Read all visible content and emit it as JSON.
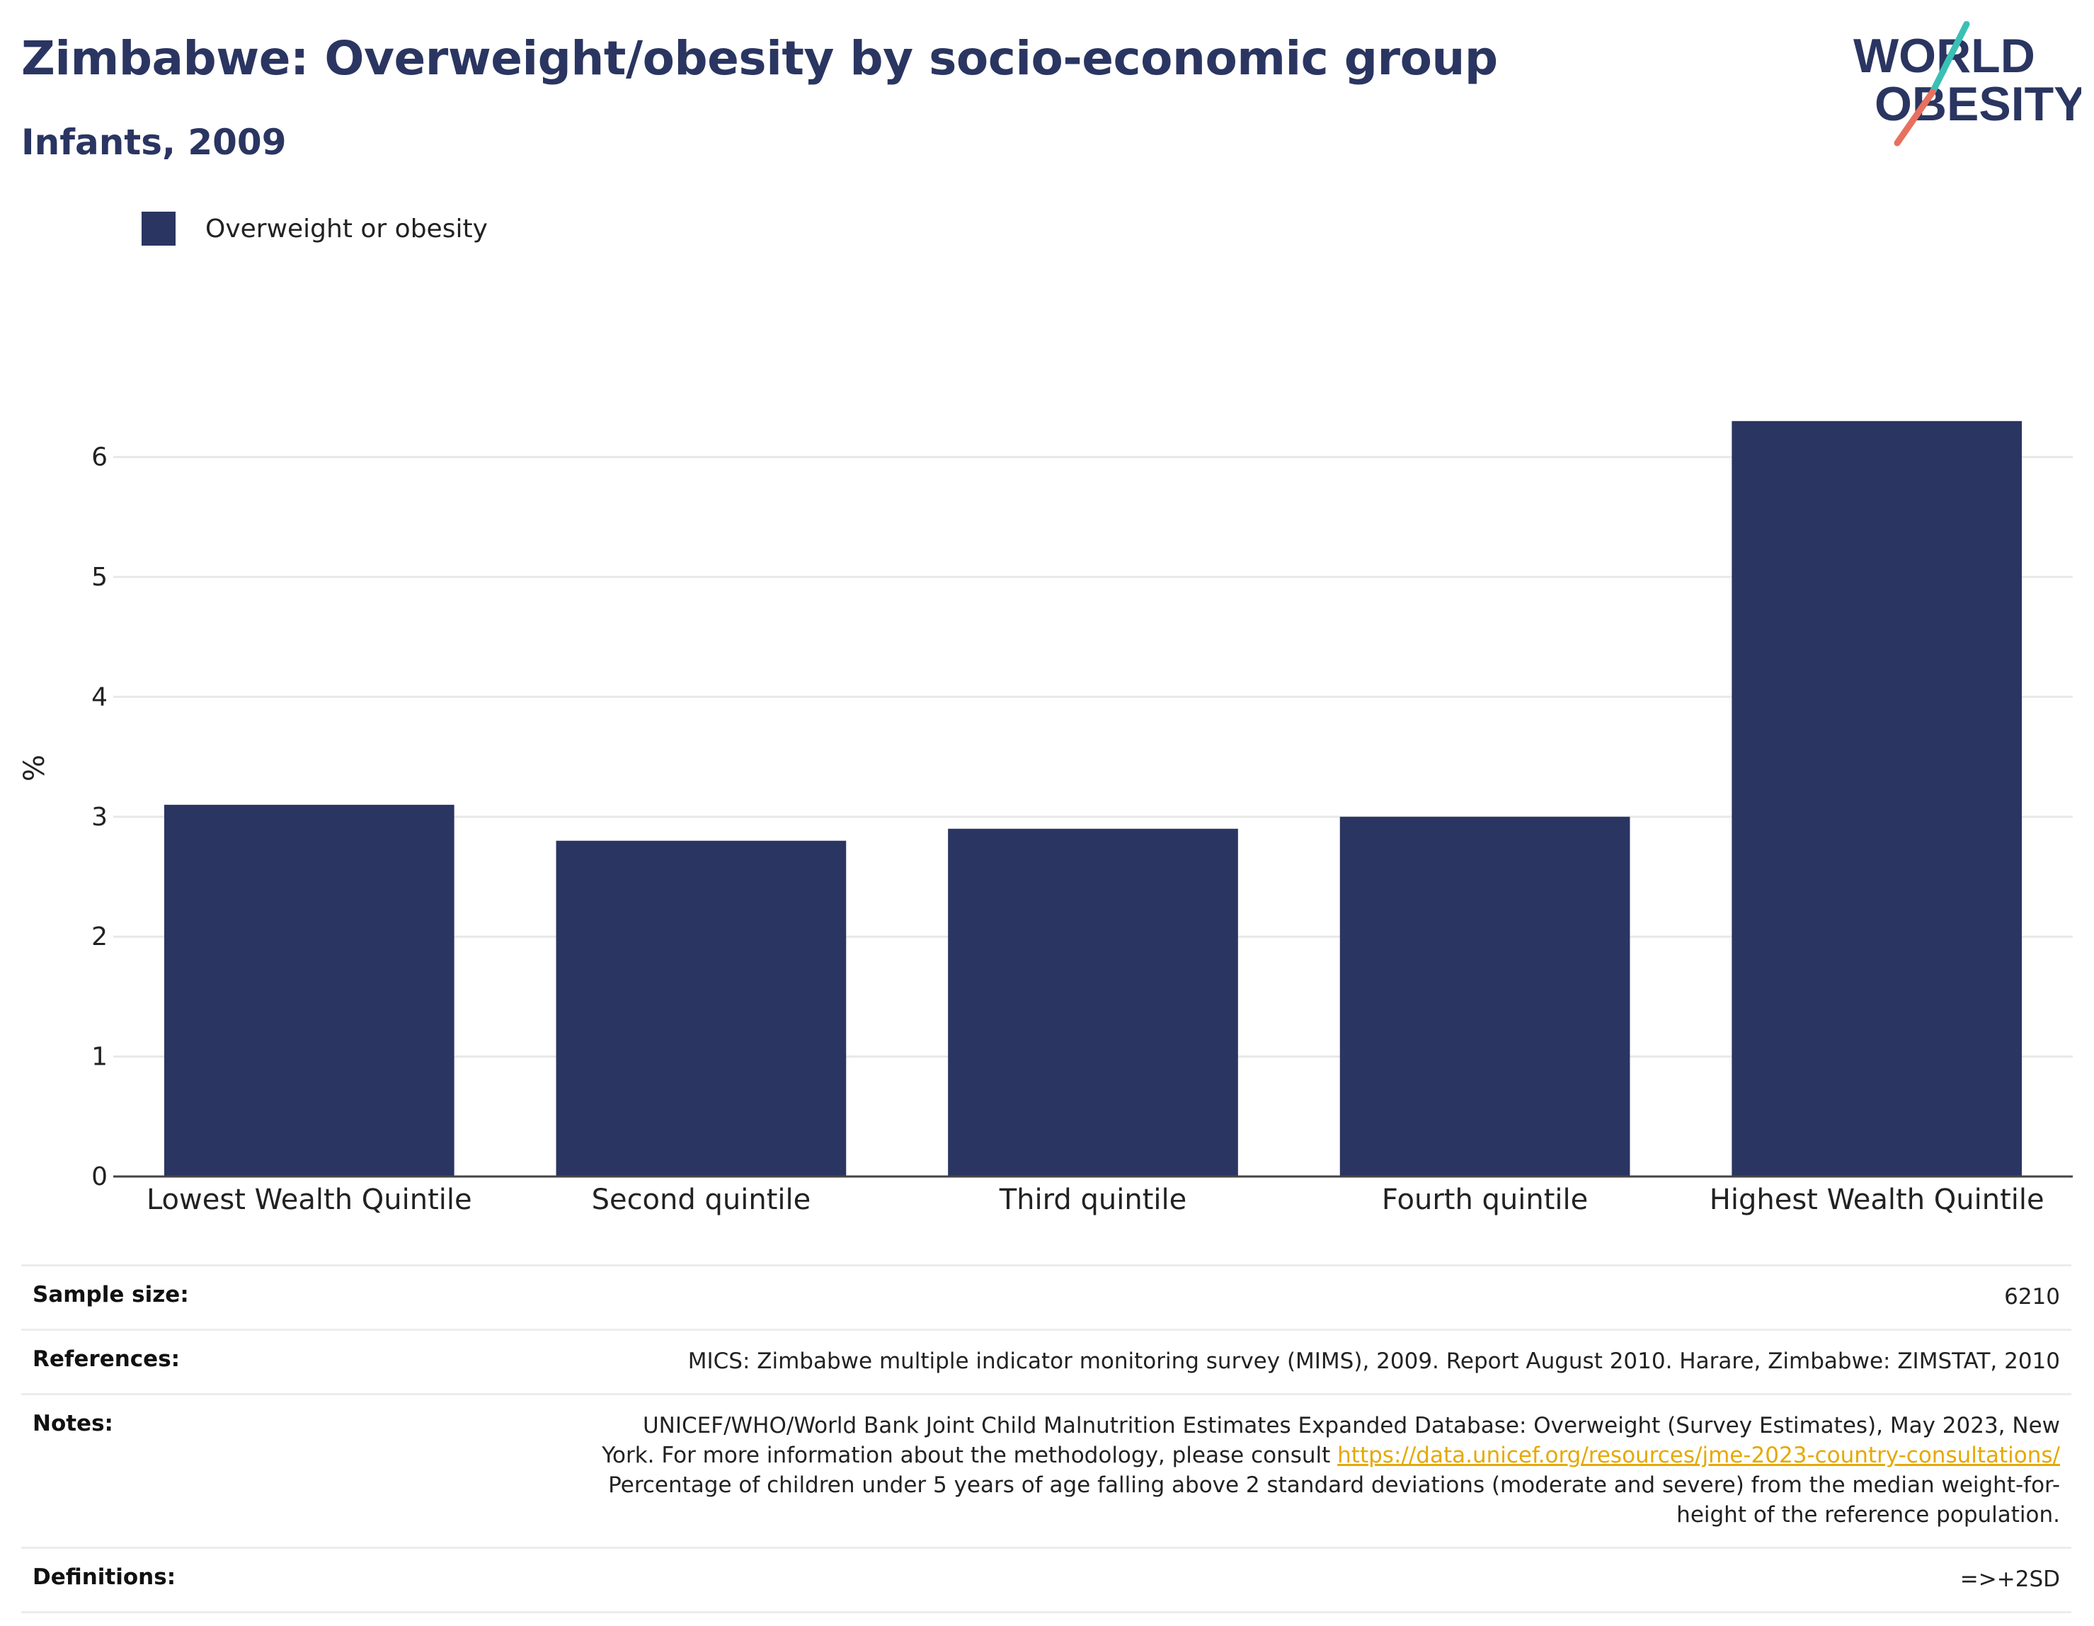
{
  "header": {
    "title": "Zimbabwe: Overweight/obesity by socio-economic group",
    "subtitle": "Infants, 2009",
    "logo_line1": "WORLD",
    "logo_line2": "OBESITY"
  },
  "legend": {
    "label": "Overweight or obesity"
  },
  "colors": {
    "bar": "#2a3561",
    "title": "#2a3561",
    "link": "#e6a800",
    "logo_teal": "#3bbfb5",
    "logo_coral": "#e8705f"
  },
  "chart_data": {
    "type": "bar",
    "categories": [
      "Lowest Wealth Quintile",
      "Second quintile",
      "Third quintile",
      "Fourth quintile",
      "Highest Wealth Quintile"
    ],
    "series": [
      {
        "name": "Overweight or obesity",
        "values": [
          3.1,
          2.8,
          2.9,
          3.0,
          6.3
        ]
      }
    ],
    "ylabel": "%",
    "ylim": [
      0,
      6.6
    ],
    "yticks": [
      0,
      1,
      2,
      3,
      4,
      5,
      6
    ],
    "grid": true,
    "legend_position": "top-left"
  },
  "info": {
    "sample_size_label": "Sample size:",
    "sample_size_value": "6210",
    "references_label": "References:",
    "references_value": "MICS: Zimbabwe multiple indicator monitoring survey (MIMS), 2009. Report August 2010. Harare, Zimbabwe: ZIMSTAT, 2010",
    "notes_label": "Notes:",
    "notes_line1": "UNICEF/WHO/World Bank Joint Child Malnutrition Estimates Expanded Database: Overweight (Survey Estimates), May 2023, New",
    "notes_line2_prefix": "York. For more information about the methodology, please consult ",
    "notes_link": "https://data.unicef.org/resources/jme-2023-country-consultations/",
    "notes_line3": "Percentage of children under 5 years of age falling above 2 standard deviations (moderate and severe) from the median weight-for-",
    "notes_line4": "height of the reference population.",
    "definitions_label": "Definitions:",
    "definitions_value": "=>+2SD"
  }
}
